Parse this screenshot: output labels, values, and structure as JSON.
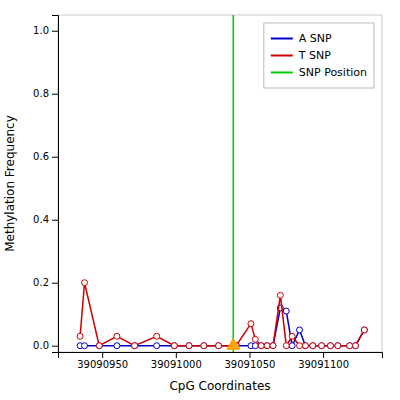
{
  "chart_data": {
    "type": "line",
    "xlabel": "CpG Coordinates",
    "ylabel": "Methylation Frequency",
    "x": [
      39090935,
      39090938,
      39090948,
      39090960,
      39090972,
      39090987,
      39090999,
      39091009,
      39091019,
      39091029,
      39091041,
      39091051,
      39091054,
      39091058,
      39091062,
      39091066,
      39091071,
      39091075,
      39091079,
      39091084,
      39091088,
      39091093,
      39091099,
      39091105,
      39091110,
      39091118,
      39091122,
      39091128
    ],
    "series": [
      {
        "name": "A SNP",
        "type": "line",
        "color": "#0000cc",
        "marker": "circle",
        "line_style": "solid",
        "values": [
          0.0,
          0.0,
          0.0,
          0.0,
          0.0,
          0.0,
          0.0,
          0.0,
          0.0,
          0.0,
          0.0,
          0.0,
          0.0,
          0.0,
          0.0,
          0.0,
          0.12,
          0.11,
          0.0,
          0.05,
          0.0,
          0.0,
          0.0,
          0.0,
          0.0,
          0.0,
          0.0,
          0.05
        ]
      },
      {
        "name": "T SNP",
        "type": "line",
        "color": "#cc0000",
        "marker": "circle",
        "line_style": "solid",
        "values": [
          0.03,
          0.2,
          0.0,
          0.03,
          0.0,
          0.03,
          0.0,
          0.0,
          0.0,
          0.0,
          0.0,
          0.07,
          0.02,
          0.0,
          0.0,
          0.0,
          0.16,
          0.0,
          0.03,
          0.0,
          0.0,
          0.0,
          0.0,
          0.0,
          0.0,
          0.0,
          0.0,
          0.05
        ]
      },
      {
        "name": "SNP Position",
        "type": "vline",
        "color": "#00cc00",
        "line_style": "solid",
        "x": 39091039
      },
      {
        "type": "scatter",
        "color": "#ffa500",
        "marker": "triangle",
        "x": [
          39091039
        ],
        "values": [
          0.0
        ]
      }
    ],
    "xlim": [
      39090920,
      39091140
    ],
    "ylim": [
      -0.02,
      1.05
    ],
    "xticks": [
      39090950,
      39091000,
      39091050,
      39091100
    ],
    "yticks": [
      {
        "value": 0.0,
        "label": "0.0"
      },
      0.2,
      0.4,
      0.6,
      0.8,
      {
        "value": 1.0,
        "label": "1.0"
      }
    ],
    "grid": false,
    "legend": "upper right"
  }
}
